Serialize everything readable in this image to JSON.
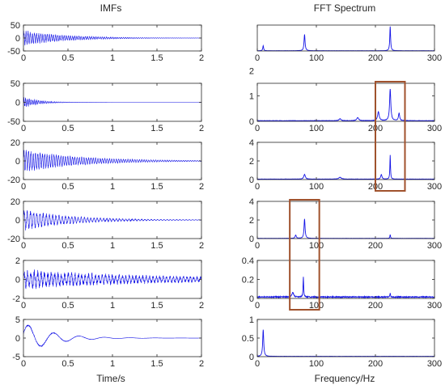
{
  "chart_data": [
    {
      "type": "line",
      "title": "IMFs",
      "xlabel": "Time/s",
      "subplots": [
        {
          "ylim": [
            -50,
            50
          ],
          "yticks": [
            "50",
            "0",
            "-50"
          ],
          "xlim": [
            0,
            2
          ],
          "xticks": [
            "0",
            "0.5",
            "1",
            "1.5",
            "2"
          ],
          "signal": {
            "amp0": 32,
            "decay": 2.2,
            "freq": 120,
            "noise": 0.25
          }
        },
        {
          "ylim": [
            -50,
            50
          ],
          "yticks": [
            "50",
            "0",
            "-50"
          ],
          "xlim": [
            0,
            2
          ],
          "xticks": [
            "0",
            "0.5",
            "1",
            "1.5",
            "2"
          ],
          "signal": {
            "amp0": 16,
            "decay": 6,
            "freq": 140,
            "noise": 0.3
          }
        },
        {
          "ylim": [
            -20,
            20
          ],
          "yticks": [
            "20",
            "0",
            "-20"
          ],
          "xlim": [
            0,
            2
          ],
          "xticks": [
            "0",
            "0.5",
            "1",
            "1.5",
            "2"
          ],
          "signal": {
            "amp0": 13,
            "decay": 1.6,
            "freq": 110,
            "noise": 0.2
          }
        },
        {
          "ylim": [
            -20,
            20
          ],
          "yticks": [
            "20",
            "0",
            "-20"
          ],
          "xlim": [
            0,
            2
          ],
          "xticks": [
            "0",
            "0.5",
            "1",
            "1.5",
            "2"
          ],
          "signal": {
            "amp0": 12,
            "decay": 1.9,
            "freq": 80,
            "noise": 0.25
          }
        },
        {
          "ylim": [
            -2,
            2
          ],
          "yticks": [
            "2",
            "0",
            "-2"
          ],
          "xlim": [
            0,
            2
          ],
          "xticks": [
            "0",
            "0.5",
            "1",
            "1.5",
            "2"
          ],
          "signal": {
            "amp0": 1.1,
            "decay": 0.6,
            "freq": 75,
            "noise": 0.35
          }
        },
        {
          "ylim": [
            -5,
            5
          ],
          "yticks": [
            "5",
            "0",
            "-5"
          ],
          "xlim": [
            0,
            2
          ],
          "xticks": [
            "0",
            "0.5",
            "1",
            "1.5",
            "2"
          ],
          "signal": {
            "amp0": 4.3,
            "decay": 3.2,
            "freq": 10,
            "noise": 0.05
          }
        }
      ]
    },
    {
      "type": "line",
      "title": "FFT Spectrum",
      "xlabel": "Frequency/Hz",
      "subplots": [
        {
          "ylim": [
            0,
            4.6
          ],
          "yticks": [],
          "xlim": [
            0,
            300
          ],
          "xticks": [
            "0",
            "100",
            "200",
            "300"
          ],
          "peaks": [
            [
              10,
              0.9,
              2
            ],
            [
              80,
              2.9,
              2.5
            ],
            [
              225,
              4.3,
              2
            ]
          ],
          "floor": 0.05
        },
        {
          "ylim": [
            0,
            1.5
          ],
          "yticks": [
            "2",
            "1",
            "0"
          ],
          "ytick_values": [
            2,
            1,
            0
          ],
          "xlim": [
            0,
            300
          ],
          "xticks": [
            "0",
            "100",
            "200",
            "300"
          ],
          "peaks": [
            [
              205,
              0.35,
              4
            ],
            [
              225,
              1.25,
              3
            ],
            [
              240,
              0.3,
              3
            ],
            [
              170,
              0.12,
              5
            ],
            [
              140,
              0.08,
              5
            ]
          ],
          "floor": 0.03
        },
        {
          "ylim": [
            0,
            4
          ],
          "yticks": [
            "4",
            "2",
            "0"
          ],
          "ytick_values": [
            4,
            2,
            0
          ],
          "xlim": [
            0,
            300
          ],
          "xticks": [
            "0",
            "100",
            "200",
            "300"
          ],
          "peaks": [
            [
              80,
              0.5,
              4
            ],
            [
              210,
              0.5,
              3
            ],
            [
              225,
              2.6,
              1.5
            ],
            [
              140,
              0.2,
              6
            ]
          ],
          "floor": 0.06
        },
        {
          "ylim": [
            0,
            4
          ],
          "yticks": [
            "4",
            "2",
            "0"
          ],
          "ytick_values": [
            4,
            2,
            0
          ],
          "xlim": [
            0,
            300
          ],
          "xticks": [
            "0",
            "100",
            "200",
            "300"
          ],
          "peaks": [
            [
              80,
              2.1,
              2.5
            ],
            [
              65,
              0.35,
              3
            ],
            [
              225,
              0.4,
              1.5
            ]
          ],
          "floor": 0.03
        },
        {
          "ylim": [
            0,
            0.4
          ],
          "yticks": [
            "0.4",
            "0.2",
            "0"
          ],
          "ytick_values": [
            0.4,
            0.2,
            0
          ],
          "xlim": [
            0,
            300
          ],
          "xticks": [
            "0",
            "100",
            "200",
            "300"
          ],
          "peaks": [
            [
              78,
              0.21,
              1.5
            ],
            [
              60,
              0.05,
              4
            ],
            [
              225,
              0.04,
              1.5
            ]
          ],
          "floor": 0.02
        },
        {
          "ylim": [
            0,
            1
          ],
          "yticks": [
            "1",
            "0.5",
            "0"
          ],
          "ytick_values": [
            1,
            0.5,
            0
          ],
          "xlim": [
            0,
            300
          ],
          "xticks": [
            "0",
            "100",
            "200",
            "300"
          ],
          "peaks": [
            [
              10,
              0.72,
              2.5
            ]
          ],
          "floor": 0.01
        }
      ],
      "highlights": [
        {
          "rows": [
            1,
            2
          ],
          "x": [
            200,
            250
          ]
        },
        {
          "rows": [
            3,
            4
          ],
          "x": [
            55,
            105
          ]
        }
      ]
    }
  ],
  "colors": {
    "line": "#1414e6",
    "axis": "#262626",
    "highlight": "#a0522d"
  }
}
